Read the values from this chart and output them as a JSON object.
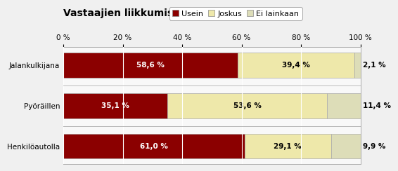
{
  "title": "Vastaajien liikkumistavat asuinkunnassa",
  "categories": [
    "Jalankulkijana",
    "Pyöräillen",
    "Henkilöautolla"
  ],
  "series": {
    "Usein": [
      58.6,
      35.1,
      61.0
    ],
    "Joskus": [
      39.4,
      53.6,
      29.1
    ],
    "Ei lainkaan": [
      2.1,
      11.4,
      9.9
    ]
  },
  "colors": {
    "Usein": "#8B0000",
    "Joskus": "#EEE8AA",
    "Ei lainkaan": "#DDDDB8"
  },
  "text_colors": {
    "Usein": "white",
    "Joskus": "black",
    "Ei lainkaan": "black"
  },
  "bar_edge_color": "#aaaaaa",
  "background_color": "#F0F0F0",
  "plot_bg_color": "#F8F8F8",
  "title_fontsize": 10,
  "label_fontsize": 7.5,
  "tick_fontsize": 7.5,
  "legend_fontsize": 8,
  "xlim": [
    0,
    100
  ],
  "xticks": [
    0,
    20,
    40,
    60,
    80,
    100
  ],
  "xtick_labels": [
    "0 %",
    "20 %",
    "40 %",
    "60 %",
    "80 %",
    "100 %"
  ]
}
